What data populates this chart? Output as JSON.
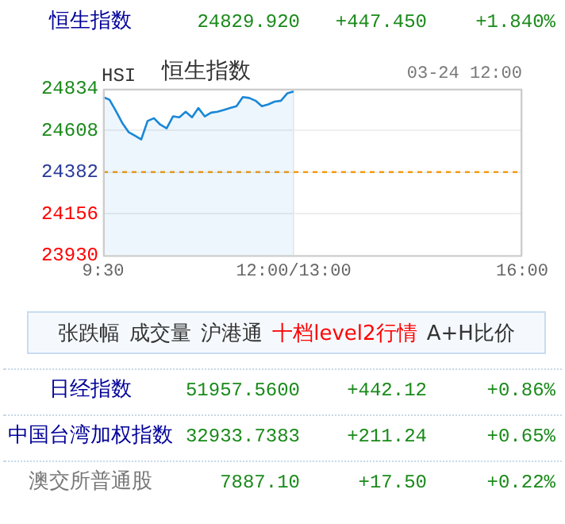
{
  "chart_data": {
    "type": "area",
    "categories": [
      "9:30",
      null,
      null,
      null,
      null,
      null,
      null,
      null,
      null,
      null,
      null,
      null,
      null,
      null,
      null,
      null,
      null,
      null,
      null,
      null,
      null,
      null,
      null,
      null,
      null,
      null,
      null,
      null,
      null,
      null,
      "12:00/13:00",
      null,
      null,
      null,
      null,
      null,
      null,
      null,
      null,
      null,
      null,
      null,
      null,
      null,
      null,
      null,
      null,
      null,
      null,
      null,
      null,
      null,
      null,
      null,
      null,
      null,
      null,
      null,
      null,
      null,
      null,
      null,
      null,
      null,
      null,
      null,
      "16:00"
    ],
    "series": [
      {
        "color": "#1a87d6",
        "values": [
          24790,
          24775,
          24715,
          24650,
          24600,
          24580,
          24560,
          24660,
          24675,
          24640,
          24620,
          24685,
          24680,
          24710,
          24680,
          24730,
          24685,
          24705,
          24710,
          24720,
          24730,
          24740,
          24790,
          24785,
          24770,
          24740,
          24750,
          24765,
          24770,
          24810,
          24820,
          null,
          null,
          null,
          null,
          null,
          null,
          null,
          null,
          null,
          null,
          null,
          null,
          null,
          null,
          null,
          null,
          null,
          null,
          null,
          null,
          null,
          null,
          null,
          null,
          null,
          null,
          null,
          null,
          null,
          null,
          null,
          null,
          null,
          null,
          null,
          null
        ]
      }
    ],
    "ylim": [
      23930,
      24834
    ],
    "yticks": [
      23930,
      24156,
      24382,
      24608,
      24834
    ],
    "grid": true,
    "marker": "none",
    "ref_lines": [
      {
        "axis": "y",
        "value": 24382,
        "color": "#f39c12",
        "line_style": "dashed"
      }
    ],
    "annotations": [
      "恒生指数",
      "24829.920",
      "+447.450",
      "+1.840%",
      "HSI",
      "恒生指数",
      "03-24 12:00",
      "张跌幅",
      "成交量",
      "沪港通",
      "十档level2行情",
      "A+H比价",
      "日经指数",
      "51957.5600",
      "+442.12",
      "+0.86%",
      "中国台湾加权指数",
      "32933.7383",
      "+211.24",
      "+0.65%",
      "澳交所普通股",
      "7887.10",
      "+17.50",
      "+0.22%"
    ]
  }
}
